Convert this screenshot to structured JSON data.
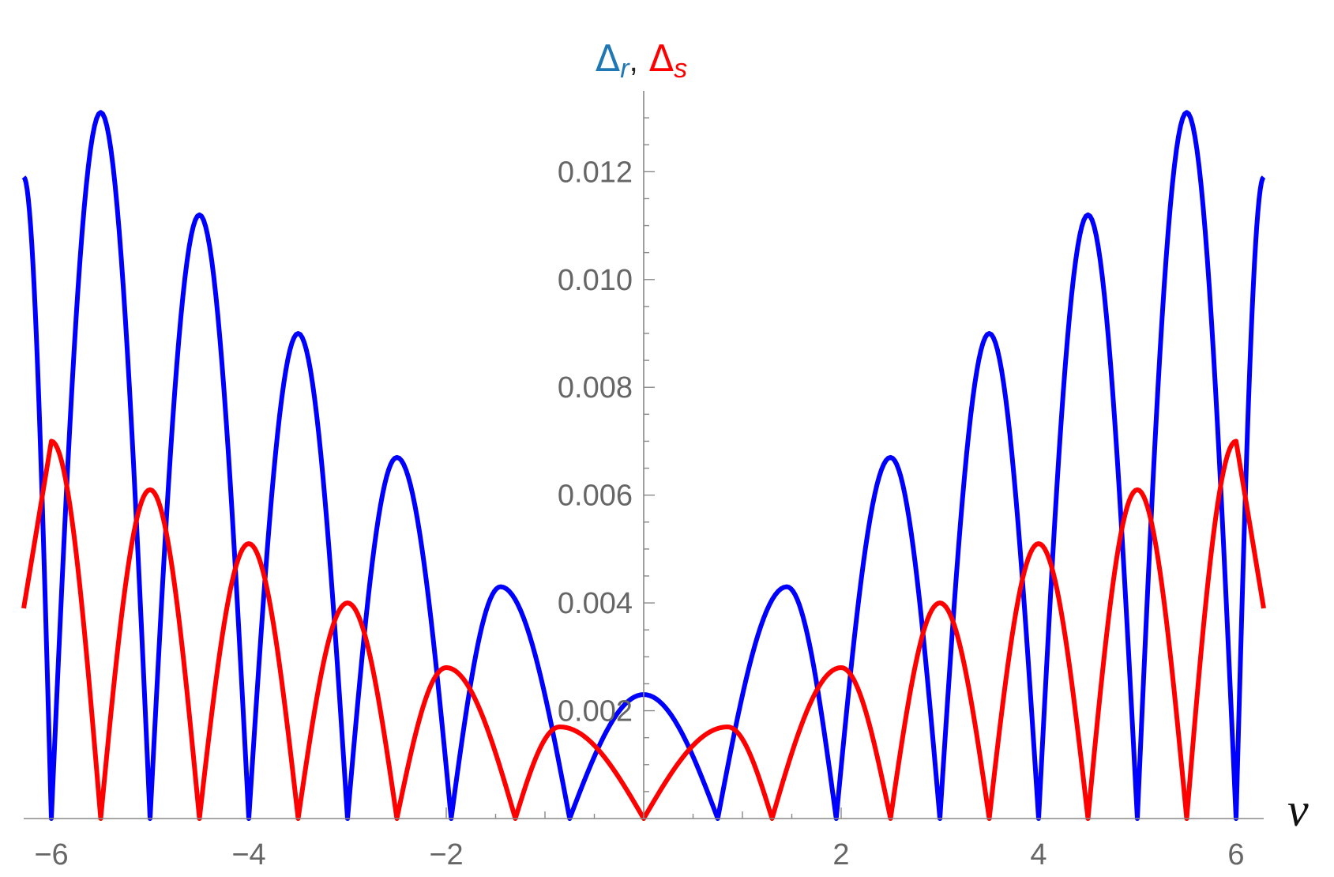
{
  "chart_data": {
    "type": "line",
    "title_parts": {
      "series1_symbol": "Δ",
      "series1_subscript": "r",
      "separator": ",",
      "series2_symbol": "Δ",
      "series2_subscript": "s"
    },
    "xlabel": "ν",
    "ylabel": "",
    "xlim": [
      -6.28,
      6.28
    ],
    "ylim": [
      0,
      0.0135
    ],
    "x_ticks": [
      -6,
      -4,
      -2,
      2,
      4,
      6
    ],
    "x_tick_labels": [
      "−6",
      "−4",
      "−2",
      "2",
      "4",
      "6"
    ],
    "y_ticks": [
      0.002,
      0.004,
      0.006,
      0.008,
      0.01,
      0.012
    ],
    "y_tick_labels": [
      "0.002",
      "0.004",
      "0.006",
      "0.008",
      "0.010",
      "0.012"
    ],
    "grid": false,
    "legend": "none",
    "series": [
      {
        "color": "#0000ff",
        "points": [
          [
            -6.28,
            0.0119
          ],
          [
            -6.0,
            0.0
          ],
          [
            -5.5,
            0.0131
          ],
          [
            -5.0,
            0.0
          ],
          [
            -4.5,
            0.0112
          ],
          [
            -4.0,
            0.0
          ],
          [
            -3.5,
            0.009
          ],
          [
            -3.0,
            0.0
          ],
          [
            -2.5,
            0.0067
          ],
          [
            -1.95,
            0.0
          ],
          [
            -1.45,
            0.0043
          ],
          [
            -0.75,
            0.0
          ],
          [
            0.0,
            0.0023
          ],
          [
            0.75,
            0.0
          ],
          [
            1.45,
            0.0043
          ],
          [
            1.95,
            0.0
          ],
          [
            2.5,
            0.0067
          ],
          [
            3.0,
            0.0
          ],
          [
            3.5,
            0.009
          ],
          [
            4.0,
            0.0
          ],
          [
            4.5,
            0.0112
          ],
          [
            5.0,
            0.0
          ],
          [
            5.5,
            0.0131
          ],
          [
            6.0,
            0.0
          ],
          [
            6.28,
            0.0119
          ]
        ]
      },
      {
        "color": "#ff0000",
        "points": [
          [
            -6.28,
            0.0039
          ],
          [
            -6.0,
            0.007
          ],
          [
            -5.5,
            0.0
          ],
          [
            -5.0,
            0.0061
          ],
          [
            -4.5,
            0.0
          ],
          [
            -4.0,
            0.0051
          ],
          [
            -3.5,
            0.0
          ],
          [
            -3.0,
            0.004
          ],
          [
            -2.5,
            0.0
          ],
          [
            -2.0,
            0.0028
          ],
          [
            -1.3,
            0.0
          ],
          [
            -0.85,
            0.0017
          ],
          [
            0.0,
            0.0
          ],
          [
            0.85,
            0.0017
          ],
          [
            1.3,
            0.0
          ],
          [
            2.0,
            0.0028
          ],
          [
            2.5,
            0.0
          ],
          [
            3.0,
            0.004
          ],
          [
            3.5,
            0.0
          ],
          [
            4.0,
            0.0051
          ],
          [
            4.5,
            0.0
          ],
          [
            5.0,
            0.0061
          ],
          [
            5.5,
            0.0
          ],
          [
            6.0,
            0.007
          ],
          [
            6.28,
            0.0039
          ]
        ]
      }
    ]
  }
}
